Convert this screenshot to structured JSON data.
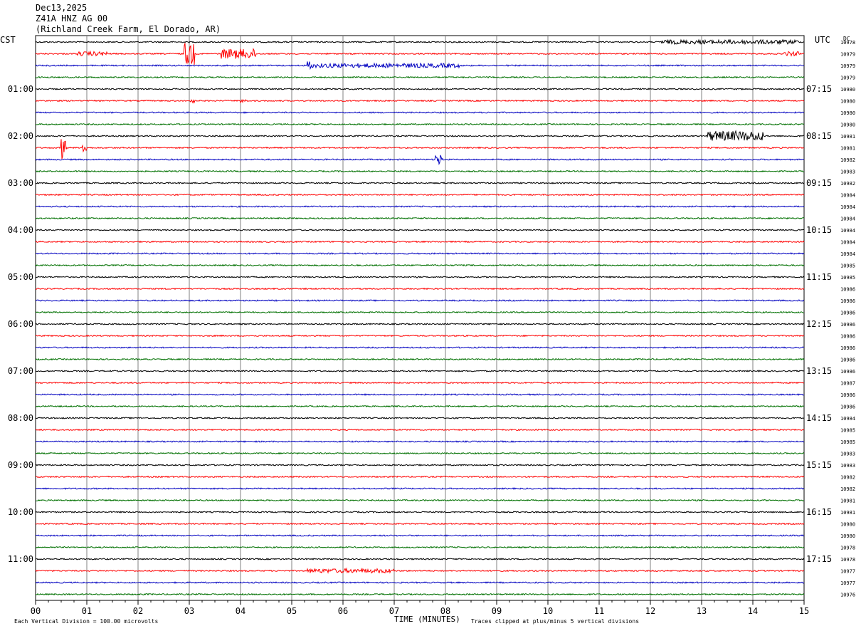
{
  "header": {
    "line1": "Dec13,2025",
    "line2": "Z41A HNZ AG 00",
    "line3": "(Richland Creek Farm, El Dorado, AR)"
  },
  "labels": {
    "left_tz": "CST",
    "right_tz": "UTC",
    "dc": "DC"
  },
  "footer": {
    "division_note": "Each Vertical Division =  100.00 microvolts",
    "xlabel": "TIME (MINUTES)",
    "clip_note": "Traces clipped at plus/minus 5 vertical divisions"
  },
  "colors": {
    "cycle": [
      "#000000",
      "#ff0000",
      "#0000c0",
      "#007000"
    ],
    "grid": "#808080"
  },
  "chart_data": {
    "type": "line",
    "title": "Dec13,2025 Z41A HNZ AG 00 (Richland Creek Farm, El Dorado, AR)",
    "xlabel": "TIME (MINUTES)",
    "x_ticks": [
      "00",
      "01",
      "02",
      "03",
      "04",
      "05",
      "06",
      "07",
      "08",
      "09",
      "10",
      "11",
      "12",
      "13",
      "14",
      "15"
    ],
    "xlim": [
      0,
      15
    ],
    "trace_count": 48,
    "trace_colors": [
      "black",
      "red",
      "blue",
      "green"
    ],
    "left_hour_labels": [
      "01:00",
      "02:00",
      "03:00",
      "04:00",
      "05:00",
      "06:00",
      "07:00",
      "08:00",
      "09:00",
      "10:00",
      "11:00"
    ],
    "left_hour_label_trace_index": [
      4,
      8,
      12,
      16,
      20,
      24,
      28,
      32,
      36,
      40,
      44
    ],
    "right_hour_labels": [
      "07:15",
      "08:15",
      "09:15",
      "10:15",
      "11:15",
      "12:15",
      "13:15",
      "14:15",
      "15:15",
      "16:15",
      "17:15"
    ],
    "dc_values": [
      10978,
      10979,
      10979,
      10979,
      10980,
      10980,
      10980,
      10980,
      10981,
      10981,
      10982,
      10983,
      10982,
      10984,
      10984,
      10984,
      10984,
      10984,
      10984,
      10985,
      10985,
      10986,
      10986,
      10986,
      10986,
      10986,
      10986,
      10986,
      10986,
      10987,
      10986,
      10986,
      10984,
      10985,
      10985,
      10983,
      10983,
      10982,
      10982,
      10981,
      10981,
      10980,
      10980,
      10978,
      10978,
      10977,
      10977,
      10976
    ],
    "events": [
      {
        "trace": 0,
        "start_min": 12.2,
        "end_min": 14.9,
        "amplitude": "low"
      },
      {
        "trace": 1,
        "start_min": 0.8,
        "end_min": 1.4,
        "amplitude": "low"
      },
      {
        "trace": 1,
        "start_min": 2.9,
        "end_min": 3.1,
        "amplitude": "high"
      },
      {
        "trace": 1,
        "start_min": 3.6,
        "end_min": 4.3,
        "amplitude": "medium"
      },
      {
        "trace": 1,
        "start_min": 14.6,
        "end_min": 14.9,
        "amplitude": "low"
      },
      {
        "trace": 2,
        "start_min": 5.3,
        "end_min": 5.4,
        "amplitude": "medium"
      },
      {
        "trace": 2,
        "start_min": 5.4,
        "end_min": 8.3,
        "amplitude": "low"
      },
      {
        "trace": 5,
        "start_min": 3.0,
        "end_min": 3.1,
        "amplitude": "low"
      },
      {
        "trace": 5,
        "start_min": 4.0,
        "end_min": 4.1,
        "amplitude": "low"
      },
      {
        "trace": 8,
        "start_min": 13.1,
        "end_min": 14.2,
        "amplitude": "medium"
      },
      {
        "trace": 9,
        "start_min": 0.5,
        "end_min": 0.6,
        "amplitude": "high"
      },
      {
        "trace": 9,
        "start_min": 0.9,
        "end_min": 1.0,
        "amplitude": "medium"
      },
      {
        "trace": 10,
        "start_min": 7.8,
        "end_min": 7.95,
        "amplitude": "medium"
      },
      {
        "trace": 45,
        "start_min": 5.3,
        "end_min": 7.0,
        "amplitude": "low"
      }
    ]
  }
}
